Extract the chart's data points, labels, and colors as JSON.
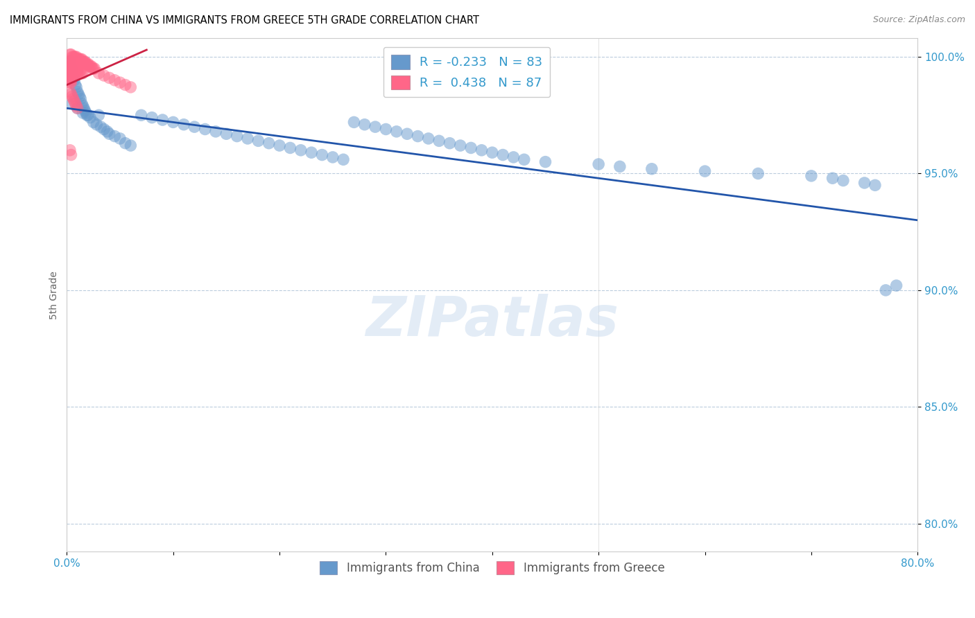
{
  "title": "IMMIGRANTS FROM CHINA VS IMMIGRANTS FROM GREECE 5TH GRADE CORRELATION CHART",
  "source": "Source: ZipAtlas.com",
  "ylabel": "5th Grade",
  "xlim": [
    0.0,
    0.8
  ],
  "ylim": [
    0.788,
    1.008
  ],
  "yticks": [
    0.8,
    0.85,
    0.9,
    0.95,
    1.0
  ],
  "ytick_labels": [
    "80.0%",
    "85.0%",
    "90.0%",
    "95.0%",
    "100.0%"
  ],
  "xticks": [
    0.0,
    0.1,
    0.2,
    0.3,
    0.4,
    0.5,
    0.6,
    0.7,
    0.8
  ],
  "xtick_labels": [
    "0.0%",
    "",
    "",
    "",
    "",
    "",
    "",
    "",
    "80.0%"
  ],
  "legend_china_R": "R = -0.233",
  "legend_china_N": "N = 83",
  "legend_greece_R": "R =  0.438",
  "legend_greece_N": "N = 87",
  "color_china": "#6699CC",
  "color_greece": "#FF6688",
  "trendline_color": "#2255AA",
  "trendline_x0": 0.0,
  "trendline_y0": 0.978,
  "trendline_x1": 0.8,
  "trendline_y1": 0.93,
  "greece_trendline_color": "#CC2244",
  "greece_trendline_x0": 0.0,
  "greece_trendline_y0": 0.988,
  "greece_trendline_x1": 0.075,
  "greece_trendline_y1": 1.003,
  "watermark": "ZIPatlas",
  "axis_color": "#3399CC",
  "grid_color": "#BBCCDD",
  "china_x": [
    0.003,
    0.004,
    0.005,
    0.006,
    0.007,
    0.008,
    0.009,
    0.01,
    0.011,
    0.012,
    0.013,
    0.014,
    0.015,
    0.016,
    0.017,
    0.018,
    0.019,
    0.02,
    0.022,
    0.025,
    0.028,
    0.03,
    0.032,
    0.035,
    0.038,
    0.04,
    0.045,
    0.05,
    0.055,
    0.06,
    0.07,
    0.08,
    0.09,
    0.1,
    0.11,
    0.12,
    0.13,
    0.14,
    0.15,
    0.16,
    0.17,
    0.18,
    0.19,
    0.2,
    0.21,
    0.22,
    0.23,
    0.24,
    0.25,
    0.26,
    0.27,
    0.28,
    0.29,
    0.3,
    0.31,
    0.32,
    0.33,
    0.34,
    0.35,
    0.36,
    0.37,
    0.38,
    0.39,
    0.4,
    0.41,
    0.42,
    0.43,
    0.45,
    0.5,
    0.52,
    0.55,
    0.6,
    0.65,
    0.7,
    0.72,
    0.73,
    0.75,
    0.76,
    0.77,
    0.78,
    0.005,
    0.01,
    0.015
  ],
  "china_y": [
    0.998,
    0.995,
    0.993,
    0.991,
    0.99,
    0.988,
    0.987,
    0.985,
    0.984,
    0.983,
    0.982,
    0.98,
    0.979,
    0.978,
    0.977,
    0.976,
    0.975,
    0.975,
    0.974,
    0.972,
    0.971,
    0.975,
    0.97,
    0.969,
    0.968,
    0.967,
    0.966,
    0.965,
    0.963,
    0.962,
    0.975,
    0.974,
    0.973,
    0.972,
    0.971,
    0.97,
    0.969,
    0.968,
    0.967,
    0.966,
    0.965,
    0.964,
    0.963,
    0.962,
    0.961,
    0.96,
    0.959,
    0.958,
    0.957,
    0.956,
    0.972,
    0.971,
    0.97,
    0.969,
    0.968,
    0.967,
    0.966,
    0.965,
    0.964,
    0.963,
    0.962,
    0.961,
    0.96,
    0.959,
    0.958,
    0.957,
    0.956,
    0.955,
    0.954,
    0.953,
    0.952,
    0.951,
    0.95,
    0.949,
    0.948,
    0.947,
    0.946,
    0.945,
    0.9,
    0.902,
    0.98,
    0.978,
    0.976
  ],
  "greece_x": [
    0.003,
    0.004,
    0.005,
    0.006,
    0.007,
    0.008,
    0.009,
    0.01,
    0.011,
    0.012,
    0.013,
    0.014,
    0.015,
    0.016,
    0.017,
    0.018,
    0.019,
    0.02,
    0.021,
    0.022,
    0.023,
    0.024,
    0.025,
    0.026,
    0.003,
    0.004,
    0.005,
    0.006,
    0.007,
    0.008,
    0.009,
    0.01,
    0.011,
    0.012,
    0.013,
    0.014,
    0.015,
    0.003,
    0.004,
    0.005,
    0.006,
    0.007,
    0.008,
    0.009,
    0.01,
    0.003,
    0.004,
    0.005,
    0.006,
    0.007,
    0.008,
    0.003,
    0.004,
    0.005,
    0.006,
    0.007,
    0.003,
    0.004,
    0.005,
    0.006,
    0.003,
    0.004,
    0.005,
    0.003,
    0.004,
    0.003,
    0.004,
    0.003,
    0.004,
    0.003,
    0.03,
    0.035,
    0.04,
    0.045,
    0.05,
    0.055,
    0.06,
    0.003,
    0.004,
    0.005,
    0.006,
    0.007,
    0.008,
    0.009,
    0.01,
    0.003,
    0.004
  ],
  "greece_y": [
    1.001,
    1.001,
    1.0,
    1.0,
    1.0,
    1.0,
    1.0,
    0.999,
    0.999,
    0.999,
    0.999,
    0.999,
    0.998,
    0.998,
    0.998,
    0.997,
    0.997,
    0.997,
    0.996,
    0.996,
    0.996,
    0.995,
    0.995,
    0.995,
    0.998,
    0.998,
    0.997,
    0.997,
    0.997,
    0.996,
    0.996,
    0.995,
    0.995,
    0.994,
    0.994,
    0.993,
    0.993,
    0.997,
    0.996,
    0.996,
    0.995,
    0.995,
    0.994,
    0.994,
    0.993,
    0.996,
    0.995,
    0.995,
    0.994,
    0.993,
    0.993,
    0.995,
    0.994,
    0.994,
    0.993,
    0.992,
    0.994,
    0.994,
    0.993,
    0.992,
    0.993,
    0.992,
    0.992,
    0.992,
    0.991,
    0.991,
    0.99,
    0.99,
    0.989,
    0.989,
    0.993,
    0.992,
    0.991,
    0.99,
    0.989,
    0.988,
    0.987,
    0.985,
    0.984,
    0.983,
    0.982,
    0.981,
    0.98,
    0.979,
    0.978,
    0.96,
    0.958
  ]
}
